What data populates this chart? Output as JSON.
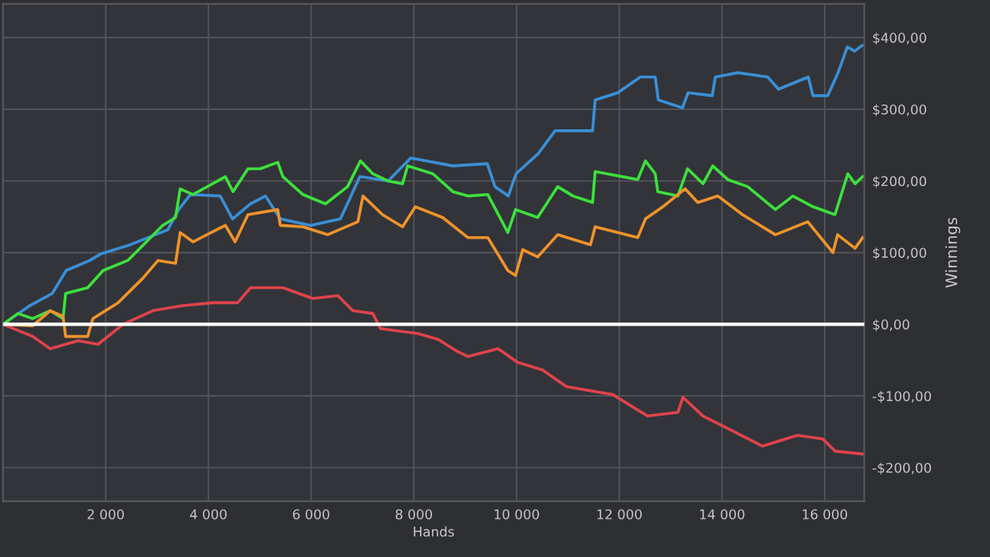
{
  "chart_data": {
    "type": "line",
    "xlabel": "Hands",
    "ylabel": "Winnings",
    "xlim": [
      0,
      16770
    ],
    "ylim": [
      -247,
      447
    ],
    "xticks": [
      {
        "value": 2000,
        "label": "2 000"
      },
      {
        "value": 4000,
        "label": "4 000"
      },
      {
        "value": 6000,
        "label": "6 000"
      },
      {
        "value": 8000,
        "label": "8 000"
      },
      {
        "value": 10000,
        "label": "10 000"
      },
      {
        "value": 12000,
        "label": "12 000"
      },
      {
        "value": 14000,
        "label": "14 000"
      },
      {
        "value": 16000,
        "label": "16 000"
      }
    ],
    "yticks": [
      {
        "value": -200,
        "label": "-$200,00"
      },
      {
        "value": -100,
        "label": "-$100,00"
      },
      {
        "value": 0,
        "label": "$0,00"
      },
      {
        "value": 100,
        "label": "$100,00"
      },
      {
        "value": 200,
        "label": "$200,00"
      },
      {
        "value": 300,
        "label": "$300,00"
      },
      {
        "value": 400,
        "label": "$400,00"
      }
    ],
    "grid": true,
    "marker": "none",
    "line_style": "solid",
    "ref_lines": [
      {
        "axis": "y",
        "value": 0,
        "color": "#ffffff"
      }
    ],
    "series": [
      {
        "color": "#3a8fd6",
        "x": [
          0,
          500,
          960,
          1230,
          1690,
          1900,
          2480,
          3210,
          3420,
          3650,
          4230,
          4470,
          4820,
          5110,
          5400,
          5990,
          6570,
          6950,
          7500,
          7940,
          8760,
          9430,
          9580,
          9840,
          9990,
          10420,
          10750,
          11480,
          11530,
          11970,
          12410,
          12700,
          12760,
          13230,
          13340,
          13810,
          13870,
          14310,
          14890,
          15100,
          15680,
          15770,
          16060,
          16260,
          16440,
          16580,
          16730
        ],
        "values": [
          0,
          25,
          43,
          75,
          89,
          98,
          111,
          132,
          160,
          181,
          179,
          147,
          168,
          179,
          147,
          138,
          147,
          206,
          200,
          232,
          221,
          224,
          192,
          179,
          210,
          238,
          270,
          270,
          313,
          323,
          345,
          345,
          313,
          302,
          323,
          319,
          345,
          351,
          345,
          328,
          345,
          319,
          319,
          351,
          387,
          381,
          389
        ]
      },
      {
        "color": "#3de03d",
        "x": [
          0,
          290,
          580,
          920,
          1170,
          1220,
          1650,
          1950,
          2430,
          2820,
          3110,
          3360,
          3450,
          3700,
          4330,
          4480,
          4770,
          5010,
          5350,
          5450,
          5840,
          6280,
          6710,
          6960,
          7200,
          7490,
          7780,
          7880,
          8370,
          8760,
          9050,
          9440,
          9830,
          9980,
          10410,
          10800,
          11100,
          11480,
          11530,
          12360,
          12510,
          12700,
          12750,
          13140,
          13330,
          13630,
          13820,
          14110,
          14500,
          15040,
          15380,
          15770,
          16200,
          16450,
          16590,
          16740
        ],
        "values": [
          0,
          15,
          8,
          19,
          8,
          43,
          51,
          75,
          89,
          117,
          138,
          149,
          189,
          181,
          206,
          185,
          217,
          217,
          226,
          206,
          181,
          168,
          192,
          228,
          210,
          200,
          196,
          221,
          210,
          185,
          179,
          181,
          128,
          160,
          149,
          192,
          179,
          170,
          213,
          202,
          228,
          210,
          185,
          179,
          217,
          196,
          221,
          202,
          192,
          160,
          179,
          164,
          153,
          210,
          196,
          206
        ]
      },
      {
        "color": "#f0932b",
        "x": [
          0,
          580,
          920,
          1170,
          1220,
          1650,
          1750,
          2240,
          2720,
          3020,
          3360,
          3450,
          3700,
          4330,
          4520,
          4770,
          5350,
          5400,
          5840,
          6320,
          6910,
          7010,
          7390,
          7780,
          8030,
          8560,
          9050,
          9440,
          9830,
          9980,
          10120,
          10410,
          10800,
          11440,
          11530,
          12360,
          12510,
          12850,
          13280,
          13530,
          13920,
          14400,
          15040,
          15670,
          16160,
          16250,
          16590,
          16740
        ],
        "values": [
          0,
          -2,
          19,
          11,
          -17,
          -17,
          8,
          30,
          64,
          89,
          85,
          128,
          115,
          138,
          115,
          153,
          160,
          138,
          136,
          125,
          143,
          179,
          153,
          136,
          164,
          149,
          121,
          121,
          75,
          68,
          104,
          94,
          125,
          111,
          136,
          121,
          147,
          164,
          189,
          170,
          179,
          153,
          125,
          143,
          100,
          125,
          106,
          121
        ]
      },
      {
        "color": "#e0434c",
        "x": [
          0,
          580,
          920,
          1460,
          1850,
          2340,
          2920,
          3500,
          4090,
          4570,
          4820,
          5450,
          6030,
          6520,
          6810,
          7200,
          7350,
          8080,
          8470,
          8850,
          9050,
          9640,
          10020,
          10510,
          10970,
          11870,
          12550,
          13140,
          13240,
          13630,
          14210,
          14790,
          15470,
          15960,
          16200,
          16740
        ],
        "values": [
          0,
          -17,
          -34,
          -23,
          -28,
          0,
          19,
          26,
          30,
          30,
          51,
          51,
          36,
          40,
          19,
          15,
          -6,
          -13,
          -21,
          -38,
          -45,
          -34,
          -53,
          -64,
          -87,
          -98,
          -128,
          -123,
          -102,
          -128,
          -149,
          -170,
          -155,
          -160,
          -177,
          -181
        ]
      }
    ]
  }
}
